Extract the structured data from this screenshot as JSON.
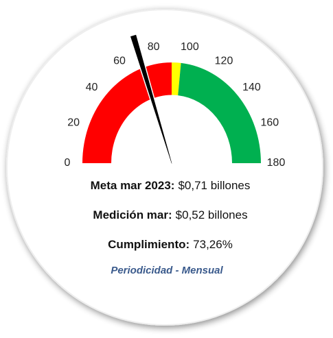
{
  "chart_data": {
    "type": "gauge",
    "ylim": [
      0,
      180
    ],
    "yticks": [
      0,
      20,
      40,
      60,
      80,
      100,
      120,
      140,
      160,
      180
    ],
    "bands": [
      {
        "from": 0,
        "to": 90,
        "color": "#ff0000"
      },
      {
        "from": 90,
        "to": 96,
        "color": "#ffff00"
      },
      {
        "from": 96,
        "to": 180,
        "color": "#00b050"
      }
    ],
    "value": 73.26,
    "needle_color": "#000000"
  },
  "info": [
    {
      "label": "Meta mar 2023:",
      "text": "$0,71 billones"
    },
    {
      "label": "Medición mar:",
      "text": "$0,52 billones"
    },
    {
      "label": "Cumplimiento:",
      "text": "73,26%"
    }
  ],
  "footer": "Periodicidad - Mensual"
}
